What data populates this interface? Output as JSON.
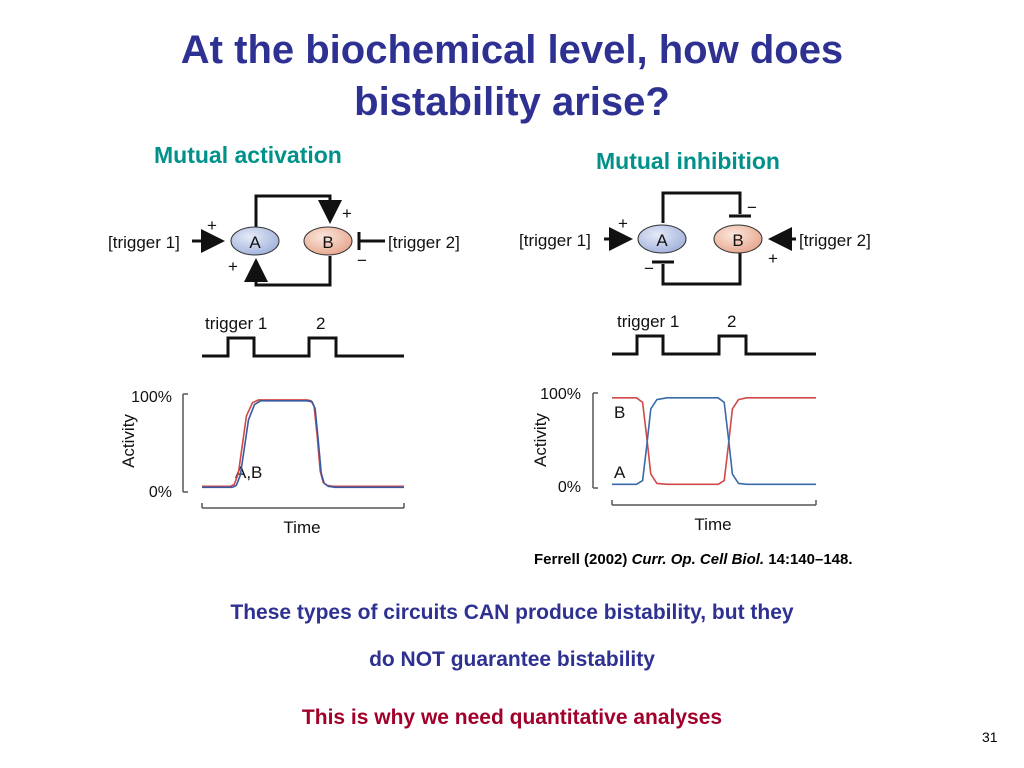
{
  "slide": {
    "title_line1": "At the biochemical level, how does",
    "title_line2": "bistability arise?",
    "number": "31",
    "title_color": "#2e3192",
    "label_color": "#00918a",
    "accent_color": "#a0002a"
  },
  "mutual_activation": {
    "label": "Mutual activation",
    "node_a": "A",
    "node_b": "B",
    "trigger1": "[trigger 1]",
    "trigger2": "[trigger 2]",
    "sign_trigger1": "+",
    "sign_trigger2": "−",
    "sign_top": "+",
    "sign_bottom": "+",
    "pulse_label1": "trigger 1",
    "pulse_label2": "2",
    "y_tick_top": "100%",
    "y_tick_bottom": "0%",
    "y_label": "Activity",
    "x_label": "Time",
    "curve_label": "A,B"
  },
  "mutual_inhibition": {
    "label": "Mutual inhibition",
    "node_a": "A",
    "node_b": "B",
    "trigger1": "[trigger 1]",
    "trigger2": "[trigger 2]",
    "sign_trigger1": "+",
    "sign_trigger2": "+",
    "sign_top": "−",
    "sign_bottom": "−",
    "pulse_label1": "trigger 1",
    "pulse_label2": "2",
    "y_tick_top": "100%",
    "y_tick_bottom": "0%",
    "y_label": "Activity",
    "x_label": "Time",
    "curve_label_b": "B",
    "curve_label_a": "A"
  },
  "chart_data": [
    {
      "type": "line",
      "panel": "mutual-activation",
      "xlabel": "Time",
      "ylabel": "Activity",
      "ylim": [
        0,
        100
      ],
      "series": [
        {
          "name": "A,B",
          "color": "#d04848",
          "x": [
            0,
            0.14,
            0.16,
            0.18,
            0.22,
            0.25,
            0.28,
            0.52,
            0.54,
            0.555,
            0.57,
            0.585,
            0.6,
            0.62,
            0.65,
            1
          ],
          "y": [
            6,
            6,
            8,
            20,
            80,
            94,
            97,
            97,
            96,
            90,
            60,
            22,
            10,
            7,
            6,
            6
          ]
        },
        {
          "color": "#3a5aa0",
          "x": [
            0,
            0.15,
            0.17,
            0.19,
            0.23,
            0.26,
            0.29,
            0.52,
            0.545,
            0.56,
            0.575,
            0.59,
            0.605,
            0.625,
            0.66,
            1
          ],
          "y": [
            5,
            5,
            7,
            18,
            76,
            92,
            96,
            96,
            95,
            88,
            56,
            20,
            9,
            6,
            5,
            5
          ]
        }
      ]
    },
    {
      "type": "line",
      "panel": "mutual-inhibition",
      "xlabel": "Time",
      "ylabel": "Activity",
      "ylim": [
        0,
        100
      ],
      "series": [
        {
          "name": "B",
          "color": "#d04848",
          "x": [
            0,
            0.12,
            0.15,
            0.17,
            0.19,
            0.22,
            0.27,
            0.52,
            0.55,
            0.57,
            0.59,
            0.62,
            0.66,
            1
          ],
          "y": [
            97,
            97,
            92,
            55,
            15,
            5,
            4,
            4,
            8,
            45,
            85,
            95,
            97,
            97
          ]
        },
        {
          "name": "A",
          "color": "#3a6aa8",
          "x": [
            0,
            0.12,
            0.15,
            0.17,
            0.19,
            0.22,
            0.27,
            0.52,
            0.55,
            0.57,
            0.59,
            0.62,
            0.66,
            1
          ],
          "y": [
            4,
            4,
            8,
            45,
            85,
            95,
            97,
            97,
            92,
            55,
            15,
            5,
            4,
            4
          ]
        }
      ]
    }
  ],
  "citation": {
    "authors": "Ferrell (2002)",
    "journal": "Curr. Op. Cell Biol.",
    "volume_pages": "14:140–148."
  },
  "message": {
    "line1": "These types of circuits CAN produce bistability, but they",
    "line2": "do NOT guarantee bistability",
    "line3": "This is why we need quantitative analyses"
  }
}
